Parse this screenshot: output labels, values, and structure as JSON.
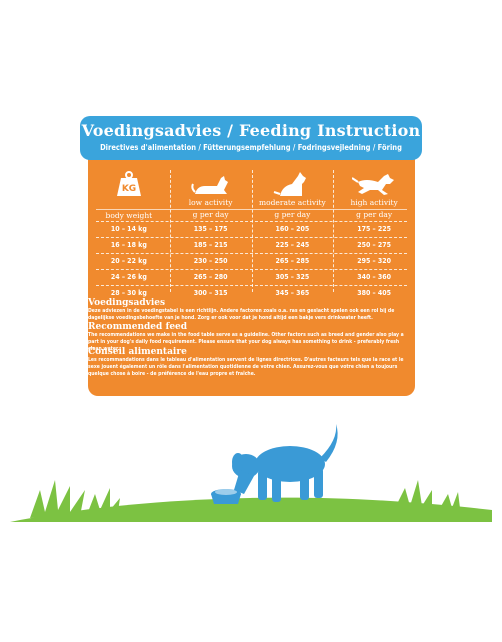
{
  "header": {
    "title": "Voedingsadvies / Feeding Instruction",
    "subtitle": "Directives d'alimentation / Fütterungsempfehlung / Fodringsvejledning / Föring"
  },
  "table": {
    "columns": [
      {
        "icon": "kg-weight-icon",
        "label": "body weight",
        "unit": "",
        "rows": [
          "10 – 14 kg",
          "16 – 18 kg",
          "20 – 22 kg",
          "24 – 26 kg",
          "28 – 30 kg"
        ]
      },
      {
        "icon": "lying-dog-icon",
        "label": "low activity",
        "unit": "g per day",
        "rows": [
          "135 – 175",
          "185 – 215",
          "230 – 250",
          "265 – 280",
          "300 – 315"
        ]
      },
      {
        "icon": "sitting-dog-icon",
        "label": "moderate activity",
        "unit": "g per day",
        "rows": [
          "160 – 205",
          "225 – 245",
          "265 – 285",
          "305 – 325",
          "345 – 365"
        ]
      },
      {
        "icon": "running-dog-icon",
        "label": "high activity",
        "unit": "g per day",
        "rows": [
          "175 – 225",
          "250 – 275",
          "295 – 320",
          "340 – 360",
          "380 – 405"
        ]
      }
    ],
    "kg_label": "KG"
  },
  "sections": [
    {
      "heading": "Voedingsadvies",
      "body": "Deze adviezen in de voedingstabel is een richtlijn. Andere factoren zoals o.a. ras en geslacht spelen ook een rol bij de dagelijkse voedingsbehoefte van je hond. Zorg er ook voor dat je hond altijd een bakje vers drinkwater heeft."
    },
    {
      "heading": "Recommended feed",
      "body": "The recommendations we make in the food table serve as a guideline. Other factors such as breed and gender also play a part in your dog's daily food requirement. Please ensure that your dog always has something to drink - preferably fresh clean water."
    },
    {
      "heading": "Conseil alimentaire",
      "body": "Les recommandations dans le tableau d'alimentation servent de lignes directrices. D'autres facteurs tels que la race et le sexe jouent également un rôle dans l'alimentation quotidienne de votre chien. Assurez-vous que votre chien a toujours quelque chose à boire - de préférence de l'eau propre et fraîche."
    }
  ],
  "colors": {
    "panel": "#f08a2e",
    "header": "#3aa4dc",
    "dog": "#3a9ad6",
    "grass": "#7cc242"
  }
}
